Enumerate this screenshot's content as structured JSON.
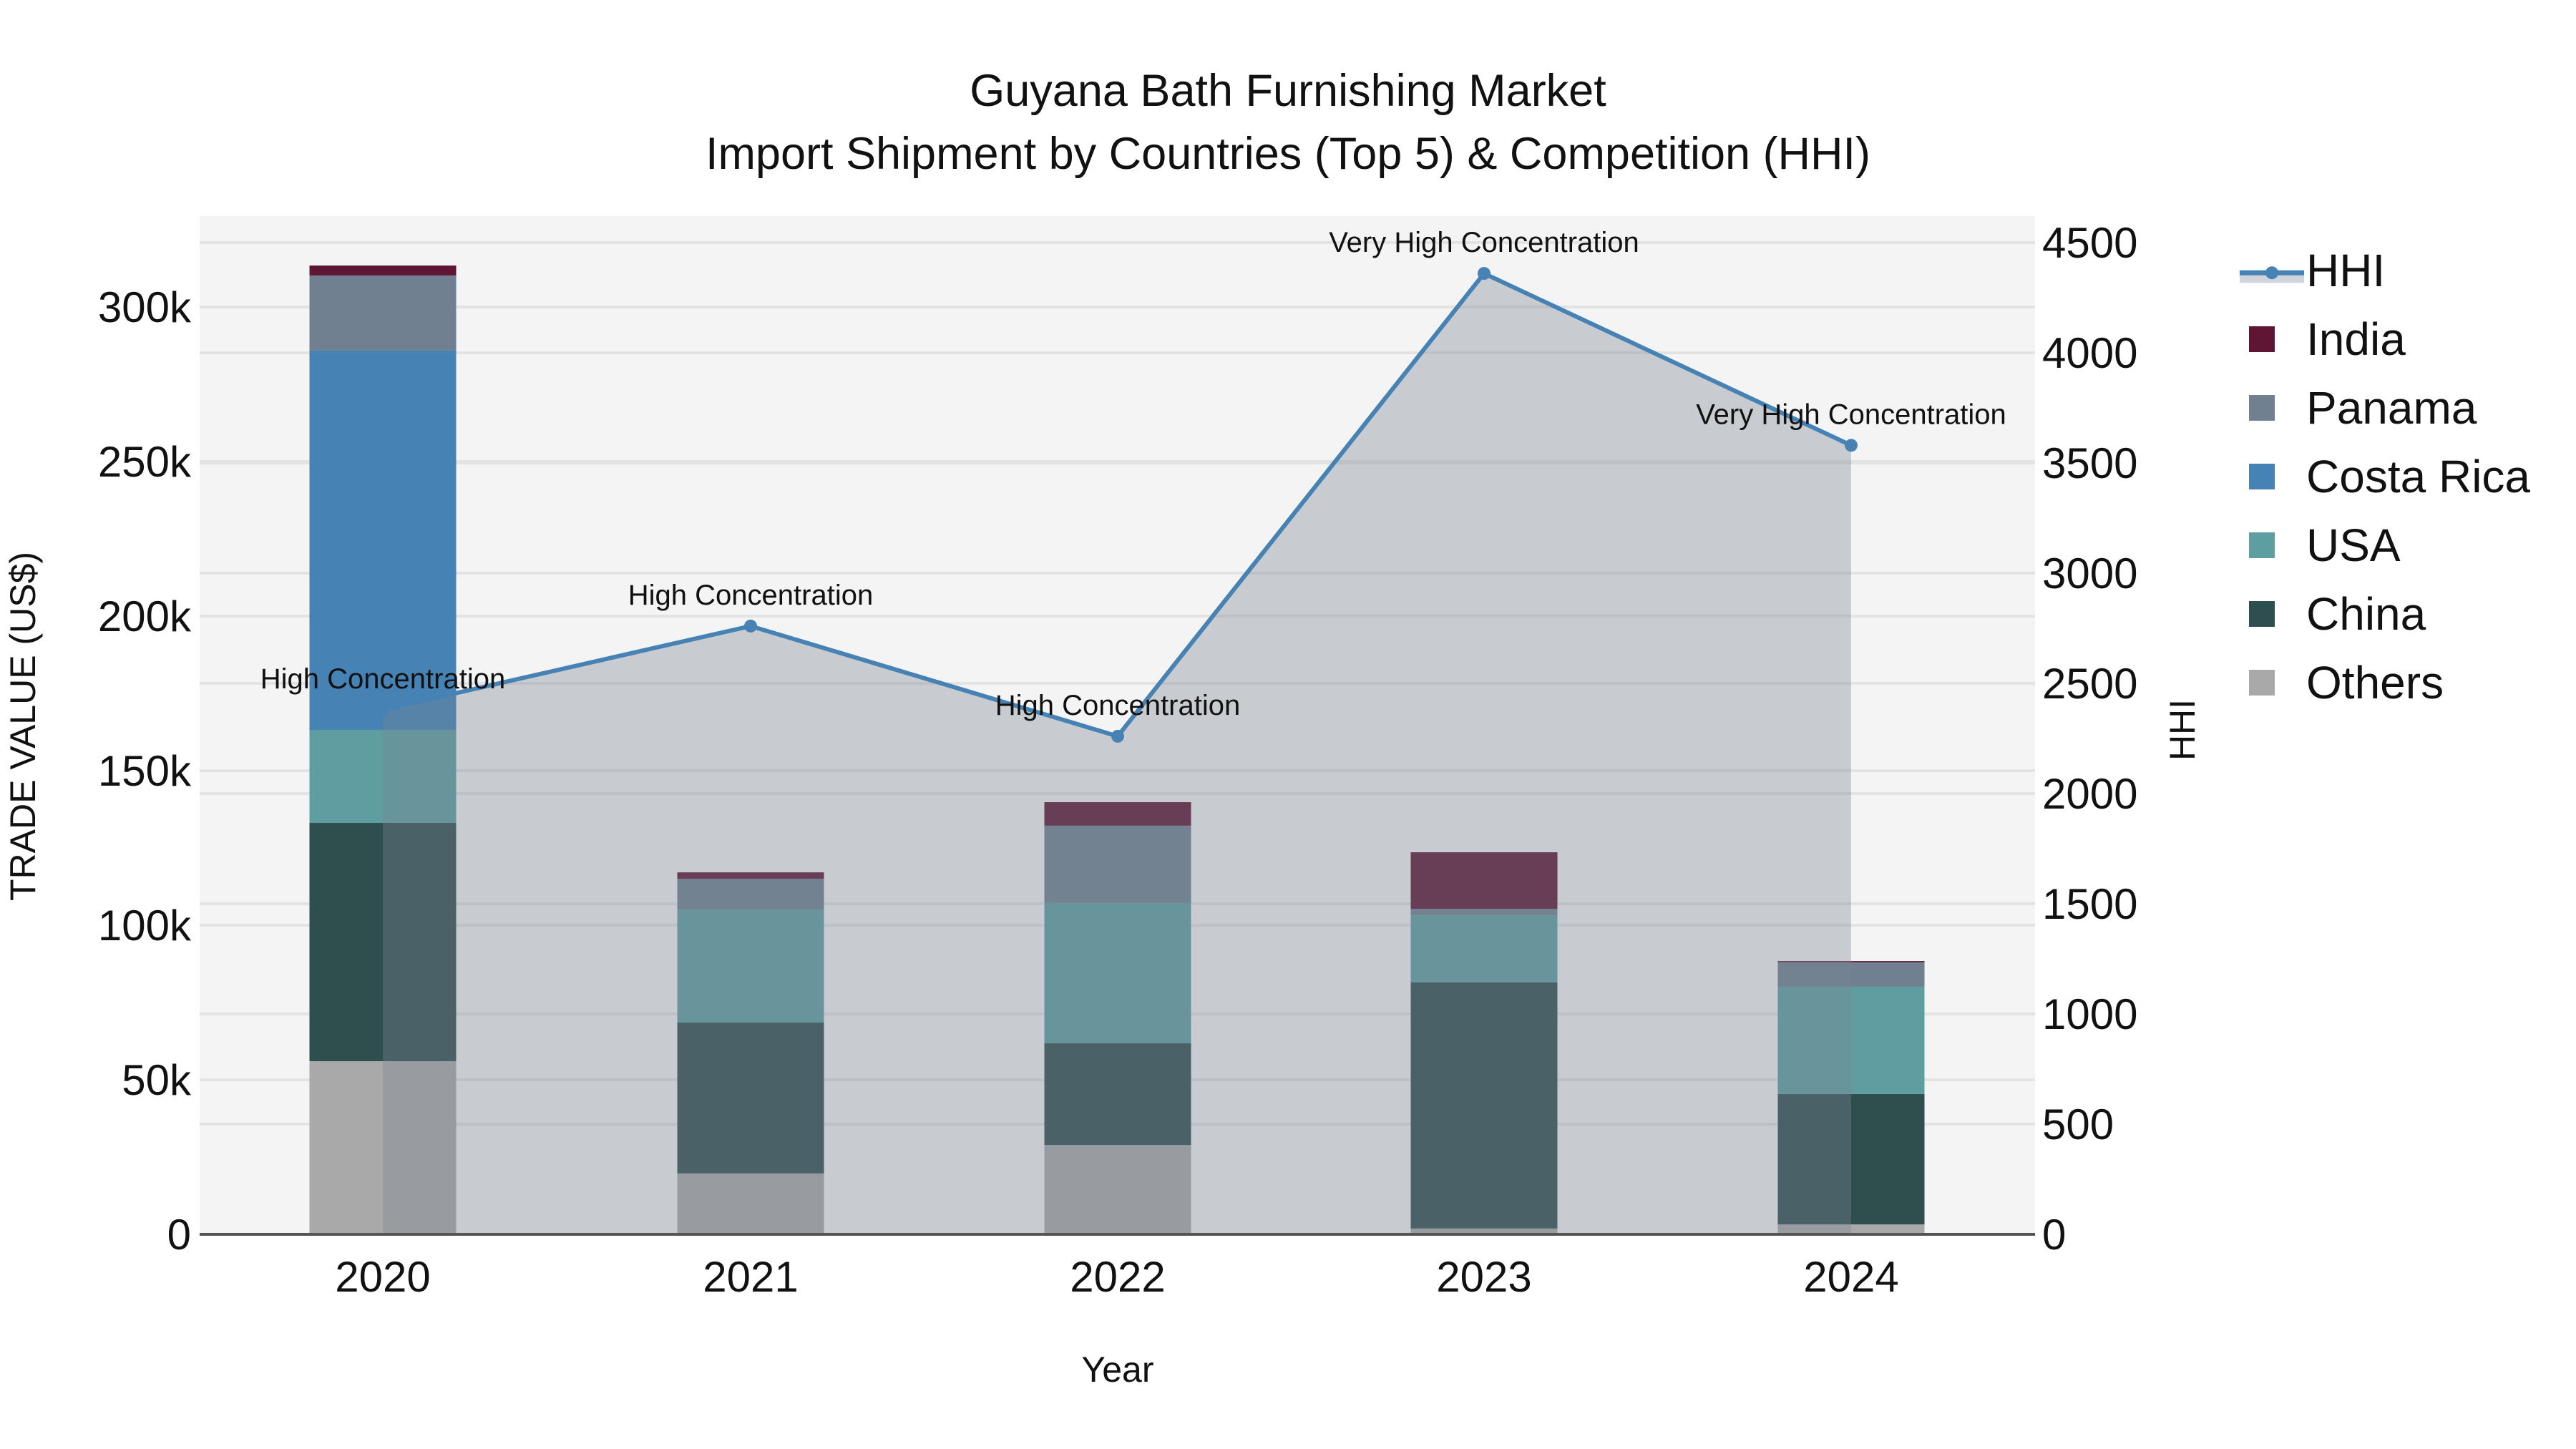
{
  "title": {
    "line1": "Guyana Bath Furnishing Market",
    "line2": "Import Shipment by Countries (Top 5) & Competition (HHI)"
  },
  "axes": {
    "x_title": "Year",
    "y_left_title": "TRADE VALUE (US$)",
    "y_right_title": "HHI",
    "y_left_ticks": [
      "0",
      "50k",
      "100k",
      "150k",
      "200k",
      "250k",
      "300k"
    ],
    "y_right_ticks": [
      "0",
      "500",
      "1000",
      "1500",
      "2000",
      "2500",
      "3000",
      "3500",
      "4000",
      "4500"
    ],
    "x_ticks": [
      "2020",
      "2021",
      "2022",
      "2023",
      "2024"
    ]
  },
  "legend": {
    "items": [
      {
        "label": "HHI",
        "color": "#4682b4",
        "type": "line"
      },
      {
        "label": "India",
        "color": "#5e1634",
        "type": "bar"
      },
      {
        "label": "Panama",
        "color": "#708090",
        "type": "bar"
      },
      {
        "label": "Costa Rica",
        "color": "#4682b4",
        "type": "bar"
      },
      {
        "label": "USA",
        "color": "#5f9ea0",
        "type": "bar"
      },
      {
        "label": "China",
        "color": "#2f4f4f",
        "type": "bar"
      },
      {
        "label": "Others",
        "color": "#a9a9a9",
        "type": "bar"
      }
    ]
  },
  "colors": {
    "plot_bg": "#f4f4f4",
    "grid": "#e3e3e3",
    "hhi_line": "#4682b4",
    "hhi_fill": "rgba(123,132,146,0.36)",
    "axis_line": "#555555"
  },
  "chart_data": {
    "type": "bar",
    "stacked": true,
    "title": "Guyana Bath Furnishing Market — Import Shipment by Countries (Top 5) & Competition (HHI)",
    "xlabel": "Year",
    "ylabel": "TRADE VALUE (US$)",
    "y2label": "HHI",
    "categories": [
      "2020",
      "2021",
      "2022",
      "2023",
      "2024"
    ],
    "ylim": [
      0,
      328000
    ],
    "y2lim": [
      0,
      4620
    ],
    "grid": true,
    "legend_position": "right",
    "series": [
      {
        "name": "Others",
        "color": "#a9a9a9",
        "values": [
          56000,
          19700,
          28900,
          1900,
          3200
        ]
      },
      {
        "name": "China",
        "color": "#2f4f4f",
        "values": [
          77100,
          48800,
          32900,
          79600,
          42200
        ]
      },
      {
        "name": "USA",
        "color": "#5f9ea0",
        "values": [
          30100,
          36600,
          45400,
          21700,
          34700
        ]
      },
      {
        "name": "Costa Rica",
        "color": "#4682b4",
        "values": [
          122700,
          0,
          0,
          0,
          0
        ]
      },
      {
        "name": "Panama",
        "color": "#708090",
        "values": [
          24300,
          9900,
          25000,
          2100,
          7900
        ]
      },
      {
        "name": "India",
        "color": "#5e1634",
        "values": [
          3200,
          2100,
          7600,
          18300,
          400
        ]
      }
    ],
    "line_series": {
      "name": "HHI",
      "axis": "y2",
      "type": "area-line",
      "values": [
        2380,
        2760,
        2260,
        4360,
        3580
      ],
      "annotations": [
        "High Concentration",
        "High Concentration",
        "High Concentration",
        "Very High Concentration",
        "Very High Concentration"
      ]
    }
  }
}
